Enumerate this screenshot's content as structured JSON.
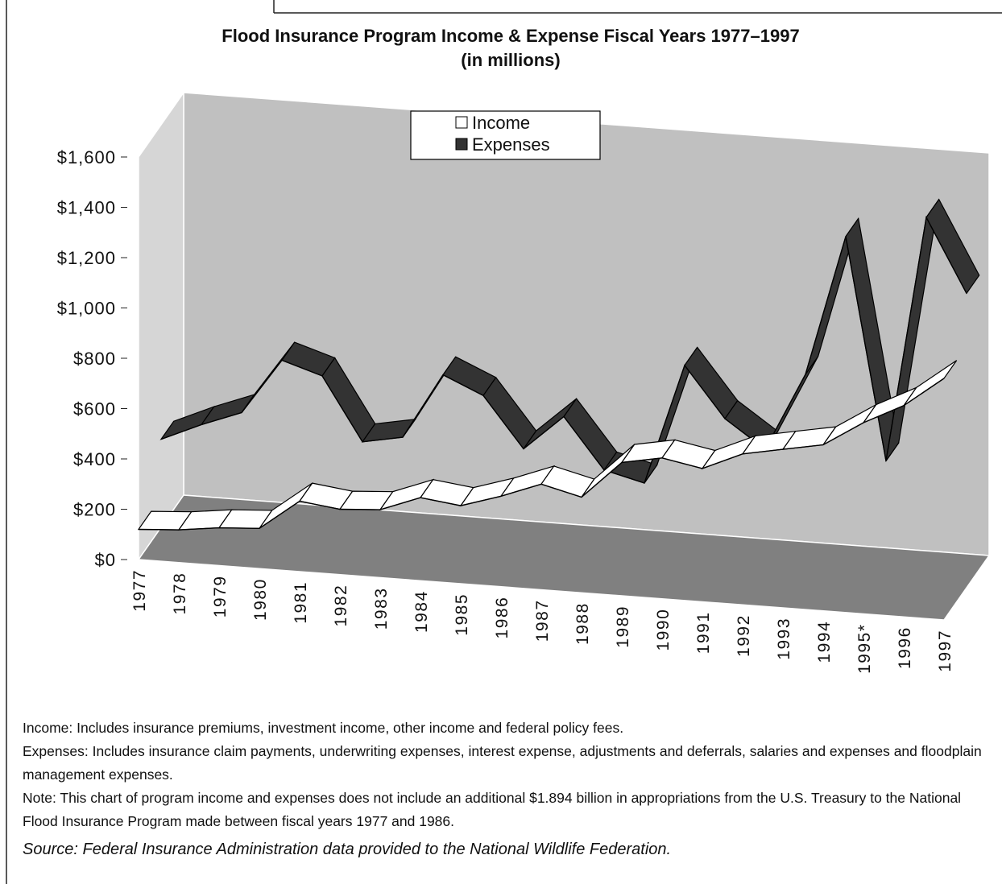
{
  "chart_data": {
    "type": "line3d",
    "title": "Flood Insurance Program Income & Expense Fiscal Years 1977–1997",
    "subtitle": "(in millions)",
    "categories": [
      "1977",
      "1978",
      "1979",
      "1980",
      "1981",
      "1982",
      "1983",
      "1984",
      "1985",
      "1986",
      "1987",
      "1988",
      "1989",
      "1990",
      "1991",
      "1992",
      "1993",
      "1994",
      "1995*",
      "1996",
      "1997"
    ],
    "series": [
      {
        "name": "Income",
        "color": "#ffffff",
        "values": [
          120,
          130,
          150,
          160,
          280,
          260,
          270,
          330,
          310,
          360,
          420,
          380,
          530,
          560,
          530,
          600,
          630,
          660,
          760,
          840,
          960
        ]
      },
      {
        "name": "Expenses",
        "color": "#333333",
        "values": [
          350,
          420,
          480,
          700,
          650,
          400,
          430,
          690,
          620,
          420,
          560,
          360,
          320,
          800,
          600,
          490,
          800,
          1360,
          480,
          1460,
          1170
        ]
      }
    ],
    "ylim": [
      0,
      1600
    ],
    "yticks": [
      {
        "value": 0,
        "label": "$0"
      },
      {
        "value": 200,
        "label": "$200"
      },
      {
        "value": 400,
        "label": "$400"
      },
      {
        "value": 600,
        "label": "$600"
      },
      {
        "value": 800,
        "label": "$800"
      },
      {
        "value": 1000,
        "label": "$1,000"
      },
      {
        "value": 1200,
        "label": "$1,200"
      },
      {
        "value": 1400,
        "label": "$1,400"
      },
      {
        "value": 1600,
        "label": "$1,600"
      }
    ],
    "legend": "top",
    "notes": [
      "Income: Includes insurance premiums, investment income, other income and federal policy fees.",
      "Expenses: Includes insurance claim payments, underwriting expenses, interest expense, adjustments and deferrals, salaries and expenses and floodplain management expenses.",
      "Note: This chart of program income and expenses does not include an additional $1.894 billion in appropriations from the U.S. Treasury to the National Flood Insurance Program made between fiscal years 1977 and 1986."
    ],
    "source": "Source: Federal Insurance Administration data provided to the National Wildlife Federation."
  }
}
